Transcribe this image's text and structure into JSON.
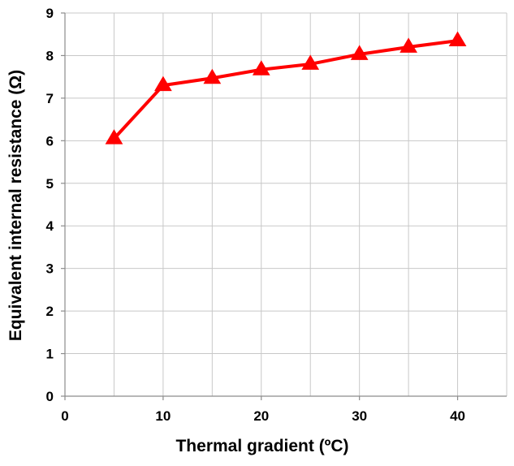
{
  "chart_data": {
    "type": "line",
    "title": "",
    "xlabel": "Thermal gradient (ºC)",
    "ylabel": "Equivalent internal resistance (Ω)",
    "xlim": [
      0,
      45
    ],
    "ylim": [
      0,
      9
    ],
    "x_ticks": [
      0,
      10,
      20,
      30,
      40
    ],
    "y_ticks": [
      0,
      1,
      2,
      3,
      4,
      5,
      6,
      7,
      8,
      9
    ],
    "x_grid_step": 5,
    "grid": true,
    "legend": "none",
    "series": [
      {
        "color": "#ff0000",
        "marker": "triangle",
        "x": [
          5,
          10,
          15,
          20,
          25,
          30,
          35,
          40
        ],
        "y": [
          6.05,
          7.3,
          7.47,
          7.67,
          7.8,
          8.03,
          8.2,
          8.35
        ]
      }
    ]
  }
}
